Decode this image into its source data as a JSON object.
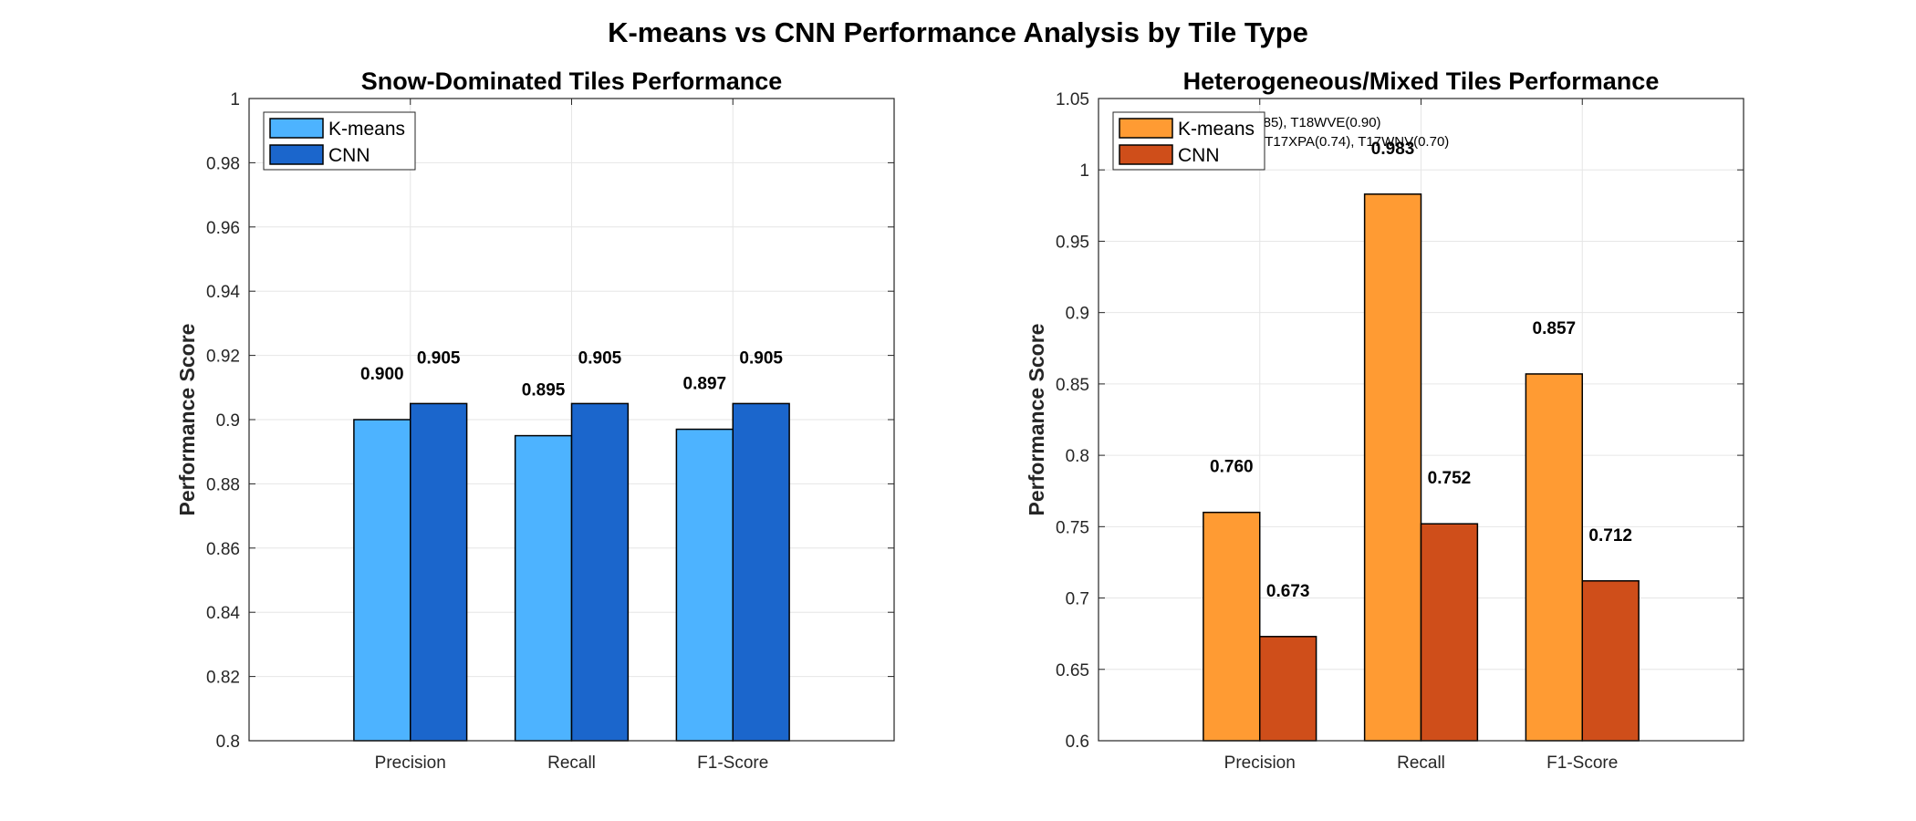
{
  "figure": {
    "title": "K-means vs CNN Performance Analysis by Tile Type"
  },
  "chart_data": [
    {
      "type": "bar",
      "title": "Snow-Dominated Tiles Performance",
      "xlabel": "",
      "ylabel": "Performance Score",
      "ylim": [
        0.8,
        1.0
      ],
      "yticks": [
        0.8,
        0.82,
        0.84,
        0.86,
        0.88,
        0.9,
        0.92,
        0.94,
        0.96,
        0.98,
        1
      ],
      "ytick_labels": [
        "0.8",
        "0.82",
        "0.84",
        "0.86",
        "0.88",
        "0.9",
        "0.92",
        "0.94",
        "0.96",
        "0.98",
        "1"
      ],
      "grid": true,
      "legend_position": "top-left",
      "categories": [
        "Precision",
        "Recall",
        "F1-Score"
      ],
      "series": [
        {
          "name": "K-means",
          "values": [
            0.9,
            0.895,
            0.897
          ],
          "labels": [
            "0.900",
            "0.895",
            "0.897"
          ],
          "color": "#4DB3FF"
        },
        {
          "name": "CNN",
          "values": [
            0.905,
            0.905,
            0.905
          ],
          "labels": [
            "0.905",
            "0.905",
            "0.905"
          ],
          "color": "#1B66CC"
        }
      ],
      "annotations": []
    },
    {
      "type": "bar",
      "title": "Heterogeneous/Mixed Tiles Performance",
      "xlabel": "",
      "ylabel": "Performance Score",
      "ylim": [
        0.6,
        1.05
      ],
      "yticks": [
        0.6,
        0.65,
        0.7,
        0.75,
        0.8,
        0.85,
        0.9,
        0.95,
        1,
        1.05
      ],
      "ytick_labels": [
        "0.6",
        "0.65",
        "0.7",
        "0.75",
        "0.8",
        "0.85",
        "0.9",
        "0.95",
        "1",
        "1.05"
      ],
      "grid": true,
      "legend_position": "top-left",
      "categories": [
        "Precision",
        "Recall",
        "F1-Score"
      ],
      "series": [
        {
          "name": "K-means",
          "values": [
            0.76,
            0.983,
            0.857
          ],
          "labels": [
            "0.760",
            "0.983",
            "0.857"
          ],
          "color": "#FF9B33"
        },
        {
          "name": "CNN",
          "values": [
            0.673,
            0.752,
            0.712
          ],
          "labels": [
            "0.673",
            "0.752",
            "0.712"
          ],
          "color": "#CF4E1A"
        }
      ],
      "annotations": [
        "2), T17XNA(0.85), T18WVE(0.90)",
        "18XWF(0.72), T17XPA(0.74), T17WNV(0.70)"
      ]
    }
  ]
}
